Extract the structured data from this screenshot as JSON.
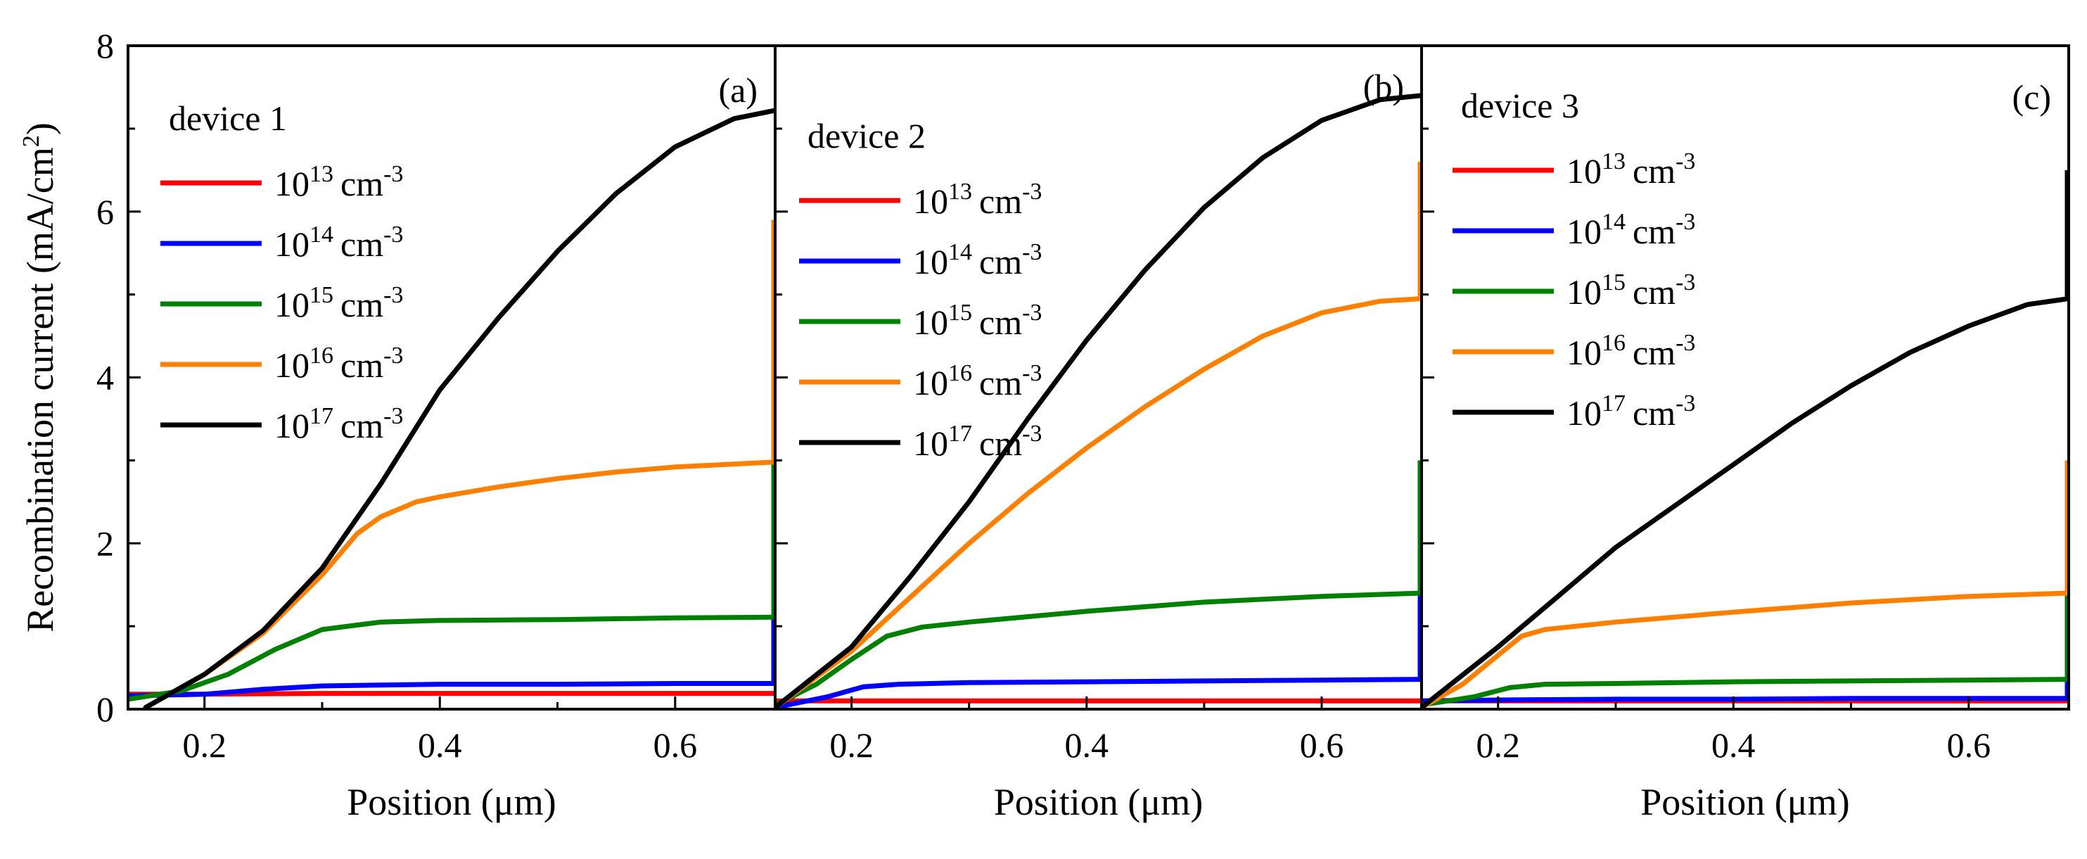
{
  "chart_data": [
    {
      "type": "line",
      "panel_label": "(a)",
      "legend_title": "device 1",
      "xlabel": "Position (μm)",
      "ylabel": "Recombination current (mA/cm",
      "ylabel_sup": "2",
      "ylabel_close": ")",
      "xlim": [
        0.135,
        0.685
      ],
      "ylim": [
        0,
        8
      ],
      "xticks": [
        0.2,
        0.4,
        0.6
      ],
      "xtick_labels": [
        "0.2",
        "0.4",
        "0.6"
      ],
      "yticks": [
        0,
        2,
        4,
        6,
        8
      ],
      "ytick_labels": [
        "0",
        "2",
        "4",
        "6",
        "8"
      ],
      "series": [
        {
          "name": "10^13 cm^-3",
          "base": "10",
          "exp": "13",
          "unit": "cm",
          "unit_exp": "-3",
          "color": "#ff0000",
          "x": [
            0.135,
            0.2,
            0.3,
            0.4,
            0.5,
            0.6,
            0.685
          ],
          "y": [
            0.18,
            0.18,
            0.19,
            0.19,
            0.19,
            0.19,
            0.19
          ],
          "end_spike": 0.2
        },
        {
          "name": "10^14 cm^-3",
          "base": "10",
          "exp": "14",
          "unit": "cm",
          "unit_exp": "-3",
          "color": "#0000ff",
          "x": [
            0.135,
            0.2,
            0.25,
            0.3,
            0.35,
            0.4,
            0.5,
            0.6,
            0.685
          ],
          "y": [
            0.16,
            0.18,
            0.24,
            0.28,
            0.29,
            0.3,
            0.3,
            0.31,
            0.31
          ],
          "end_spike": 1.4
        },
        {
          "name": "10^15 cm^-3",
          "base": "10",
          "exp": "15",
          "unit": "cm",
          "unit_exp": "-3",
          "color": "#008000",
          "x": [
            0.135,
            0.18,
            0.22,
            0.26,
            0.3,
            0.35,
            0.4,
            0.5,
            0.6,
            0.685
          ],
          "y": [
            0.12,
            0.22,
            0.42,
            0.72,
            0.96,
            1.05,
            1.07,
            1.08,
            1.1,
            1.11
          ],
          "end_spike": 3.0
        },
        {
          "name": "10^16 cm^-3",
          "base": "10",
          "exp": "16",
          "unit": "cm",
          "unit_exp": "-3",
          "color": "#ff8000",
          "x": [
            0.15,
            0.2,
            0.25,
            0.3,
            0.33,
            0.35,
            0.38,
            0.4,
            0.45,
            0.5,
            0.55,
            0.6,
            0.685
          ],
          "y": [
            0.02,
            0.42,
            0.92,
            1.62,
            2.12,
            2.32,
            2.5,
            2.56,
            2.68,
            2.78,
            2.86,
            2.92,
            2.98
          ],
          "end_spike": 5.9
        },
        {
          "name": "10^17 cm^-3",
          "base": "10",
          "exp": "17",
          "unit": "cm",
          "unit_exp": "-3",
          "color": "#000000",
          "x": [
            0.15,
            0.2,
            0.25,
            0.3,
            0.35,
            0.4,
            0.45,
            0.5,
            0.55,
            0.6,
            0.65,
            0.685
          ],
          "y": [
            0.02,
            0.42,
            0.95,
            1.7,
            2.72,
            3.85,
            4.72,
            5.52,
            6.22,
            6.78,
            7.12,
            7.22
          ],
          "end_spike": null
        }
      ]
    },
    {
      "type": "line",
      "panel_label": "(b)",
      "legend_title": "device 2",
      "xlabel": "Position (μm)",
      "xlim": [
        0.135,
        0.685
      ],
      "ylim": [
        0,
        8
      ],
      "xticks": [
        0.2,
        0.4,
        0.6
      ],
      "xtick_labels": [
        "0.2",
        "0.4",
        "0.6"
      ],
      "series": [
        {
          "name": "10^13 cm^-3",
          "base": "10",
          "exp": "13",
          "unit": "cm",
          "unit_exp": "-3",
          "color": "#ff0000",
          "x": [
            0.135,
            0.2,
            0.3,
            0.4,
            0.5,
            0.6,
            0.685
          ],
          "y": [
            0.1,
            0.1,
            0.1,
            0.1,
            0.1,
            0.1,
            0.1
          ],
          "end_spike": null
        },
        {
          "name": "10^14 cm^-3",
          "base": "10",
          "exp": "14",
          "unit": "cm",
          "unit_exp": "-3",
          "color": "#0000ff",
          "x": [
            0.135,
            0.18,
            0.21,
            0.24,
            0.3,
            0.4,
            0.5,
            0.6,
            0.685
          ],
          "y": [
            0.02,
            0.15,
            0.27,
            0.3,
            0.32,
            0.33,
            0.34,
            0.35,
            0.36
          ],
          "end_spike": 1.4
        },
        {
          "name": "10^15 cm^-3",
          "base": "10",
          "exp": "15",
          "unit": "cm",
          "unit_exp": "-3",
          "color": "#008000",
          "x": [
            0.135,
            0.17,
            0.2,
            0.23,
            0.26,
            0.3,
            0.4,
            0.5,
            0.6,
            0.685
          ],
          "y": [
            0.05,
            0.3,
            0.6,
            0.88,
            0.99,
            1.05,
            1.18,
            1.29,
            1.36,
            1.4
          ],
          "end_spike": 3.0
        },
        {
          "name": "10^16 cm^-3",
          "base": "10",
          "exp": "16",
          "unit": "cm",
          "unit_exp": "-3",
          "color": "#ff8000",
          "x": [
            0.135,
            0.2,
            0.25,
            0.3,
            0.35,
            0.4,
            0.45,
            0.5,
            0.55,
            0.6,
            0.65,
            0.685
          ],
          "y": [
            0.02,
            0.7,
            1.35,
            2.0,
            2.6,
            3.15,
            3.65,
            4.1,
            4.5,
            4.78,
            4.92,
            4.95
          ],
          "end_spike": 6.6
        },
        {
          "name": "10^17 cm^-3",
          "base": "10",
          "exp": "17",
          "unit": "cm",
          "unit_exp": "-3",
          "color": "#000000",
          "x": [
            0.135,
            0.2,
            0.25,
            0.3,
            0.35,
            0.4,
            0.45,
            0.5,
            0.55,
            0.6,
            0.65,
            0.685
          ],
          "y": [
            0.02,
            0.75,
            1.6,
            2.5,
            3.5,
            4.45,
            5.3,
            6.05,
            6.65,
            7.1,
            7.35,
            7.4
          ],
          "end_spike": null
        }
      ]
    },
    {
      "type": "line",
      "panel_label": "(c)",
      "legend_title": "device 3",
      "xlabel": "Position (μm)",
      "xlim": [
        0.135,
        0.685
      ],
      "ylim": [
        0,
        8
      ],
      "xticks": [
        0.2,
        0.4,
        0.6
      ],
      "xtick_labels": [
        "0.2",
        "0.4",
        "0.6"
      ],
      "series": [
        {
          "name": "10^13 cm^-3",
          "base": "10",
          "exp": "13",
          "unit": "cm",
          "unit_exp": "-3",
          "color": "#ff0000",
          "x": [
            0.135,
            0.2,
            0.3,
            0.4,
            0.5,
            0.6,
            0.685
          ],
          "y": [
            0.1,
            0.1,
            0.1,
            0.1,
            0.1,
            0.1,
            0.1
          ],
          "end_spike": null
        },
        {
          "name": "10^14 cm^-3",
          "base": "10",
          "exp": "14",
          "unit": "cm",
          "unit_exp": "-3",
          "color": "#0000ff",
          "x": [
            0.135,
            0.2,
            0.3,
            0.4,
            0.5,
            0.6,
            0.685
          ],
          "y": [
            0.1,
            0.11,
            0.12,
            0.12,
            0.13,
            0.13,
            0.13
          ],
          "end_spike": 0.35
        },
        {
          "name": "10^15 cm^-3",
          "base": "10",
          "exp": "15",
          "unit": "cm",
          "unit_exp": "-3",
          "color": "#008000",
          "x": [
            0.135,
            0.18,
            0.21,
            0.24,
            0.3,
            0.4,
            0.5,
            0.6,
            0.685
          ],
          "y": [
            0.05,
            0.15,
            0.26,
            0.3,
            0.31,
            0.33,
            0.34,
            0.35,
            0.36
          ],
          "end_spike": 1.4
        },
        {
          "name": "10^16 cm^-3",
          "base": "10",
          "exp": "16",
          "unit": "cm",
          "unit_exp": "-3",
          "color": "#ff8000",
          "x": [
            0.135,
            0.17,
            0.2,
            0.22,
            0.24,
            0.3,
            0.4,
            0.5,
            0.6,
            0.685
          ],
          "y": [
            0.02,
            0.3,
            0.65,
            0.88,
            0.96,
            1.05,
            1.17,
            1.28,
            1.36,
            1.4
          ],
          "end_spike": 3.0
        },
        {
          "name": "10^17 cm^-3",
          "base": "10",
          "exp": "17",
          "unit": "cm",
          "unit_exp": "-3",
          "color": "#000000",
          "x": [
            0.135,
            0.2,
            0.25,
            0.3,
            0.35,
            0.4,
            0.45,
            0.5,
            0.55,
            0.6,
            0.65,
            0.685
          ],
          "y": [
            0.02,
            0.75,
            1.35,
            1.95,
            2.45,
            2.95,
            3.45,
            3.9,
            4.3,
            4.62,
            4.88,
            4.95
          ],
          "end_spike": 6.5
        }
      ]
    }
  ]
}
